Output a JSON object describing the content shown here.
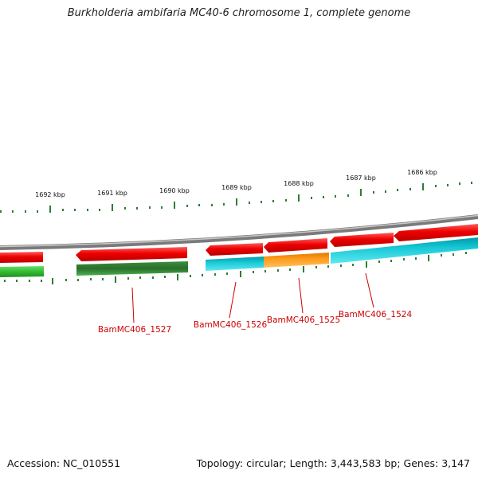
{
  "title": "Burkholderia ambifaria MC40-6 chromosome 1, complete genome",
  "accession": "Accession: NC_010551",
  "topology": "Topology: circular; Length: 3,443,583 bp; Genes: 3,147",
  "colors": {
    "label": "#cc0000",
    "ticks": "#2e7d32",
    "backbone": "#7a7a7a"
  },
  "scale_labels": [
    "1692 kbp",
    "1691 kbp",
    "1690 kbp",
    "1689 kbp",
    "1688 kbp",
    "1687 kbp",
    "1686 kbp"
  ],
  "gene_labels": [
    "BamMC406_1527",
    "BamMC406_1526",
    "BamMC406_1525",
    "BamMC406_1524"
  ]
}
